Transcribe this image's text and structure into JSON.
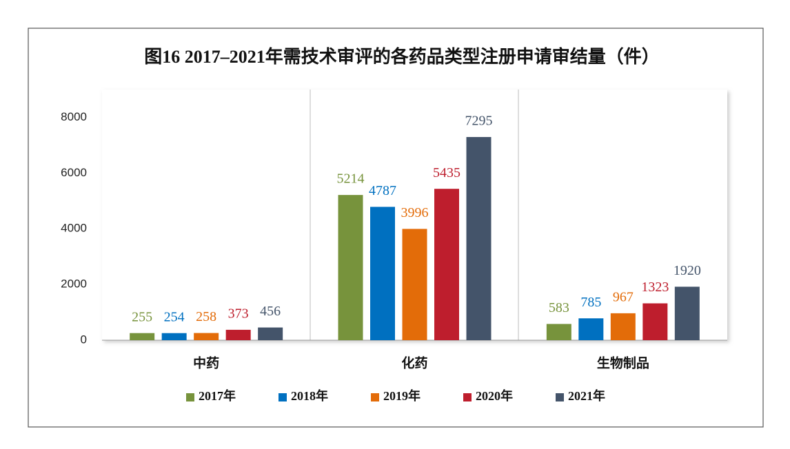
{
  "chart_data": {
    "type": "bar",
    "title": "图16 2017–2021年需技术审评的各药品类型注册申请审结量（件）",
    "categories": [
      "中药",
      "化药",
      "生物制品"
    ],
    "series": [
      {
        "name": "2017年",
        "color": "#77933c",
        "values": [
          255,
          5214,
          583
        ]
      },
      {
        "name": "2018年",
        "color": "#0070c0",
        "values": [
          254,
          4787,
          785
        ]
      },
      {
        "name": "2019年",
        "color": "#e36c09",
        "values": [
          258,
          3996,
          967
        ]
      },
      {
        "name": "2020年",
        "color": "#be1e2d",
        "values": [
          373,
          5435,
          1323
        ]
      },
      {
        "name": "2021年",
        "color": "#44546a",
        "values": [
          456,
          7295,
          1920
        ]
      }
    ],
    "ylim": [
      0,
      9000
    ],
    "yticks": [
      0,
      2000,
      4000,
      6000,
      8000
    ],
    "grid": false,
    "legend": "bottom"
  }
}
